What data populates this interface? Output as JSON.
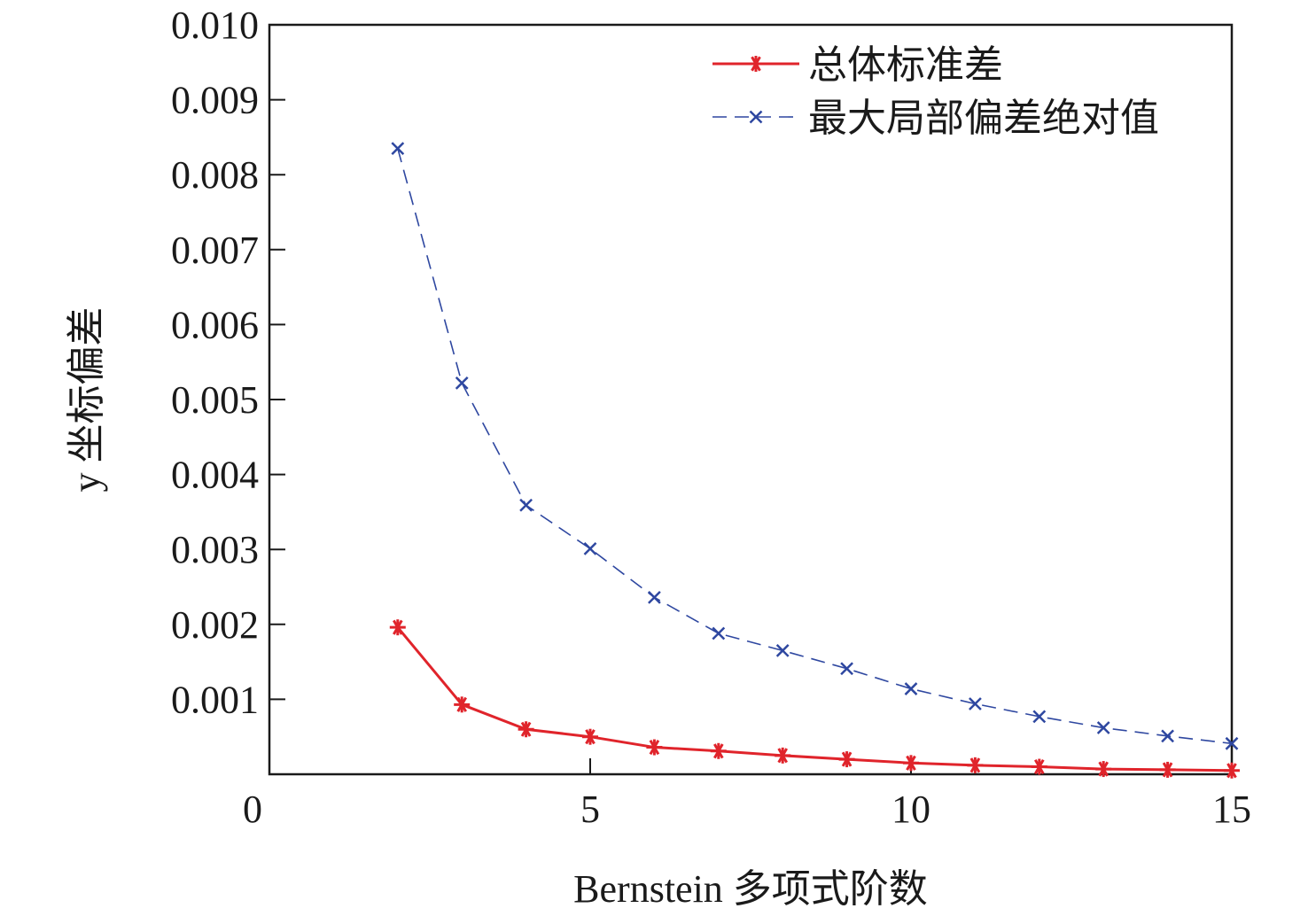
{
  "chart_data": {
    "type": "line",
    "xlabel": "Bernstein 多项式阶数",
    "ylabel": "y 坐标偏差",
    "xlim": [
      0,
      15
    ],
    "ylim": [
      0,
      0.01
    ],
    "x_ticks": [
      0,
      5,
      10,
      15
    ],
    "y_ticks": [
      0.001,
      0.002,
      0.003,
      0.004,
      0.005,
      0.006,
      0.007,
      0.008,
      0.009,
      0.01
    ],
    "y_tick_labels": [
      "0.001",
      "0.002",
      "0.003",
      "0.004",
      "0.005",
      "0.006",
      "0.007",
      "0.008",
      "0.009",
      "0.010"
    ],
    "x_tick_labels": [
      "0",
      "5",
      "10",
      "15"
    ],
    "grid": false,
    "legend_position": "top-right",
    "x": [
      2,
      3,
      4,
      5,
      6,
      7,
      8,
      9,
      10,
      11,
      12,
      13,
      14,
      15
    ],
    "series": [
      {
        "name": "总体标准差",
        "color": "#e0242b",
        "line_style": "solid",
        "marker": "asterisk",
        "values": [
          0.00196,
          0.00093,
          0.0006,
          0.0005,
          0.00036,
          0.00031,
          0.00025,
          0.0002,
          0.00015,
          0.00012,
          0.0001,
          7e-05,
          6e-05,
          5e-05
        ]
      },
      {
        "name": "最大局部偏差绝对值",
        "color": "#2e47a0",
        "line_style": "dashed",
        "marker": "x",
        "values": [
          0.00835,
          0.00522,
          0.00359,
          0.00301,
          0.00236,
          0.00188,
          0.00165,
          0.00141,
          0.00114,
          0.00094,
          0.00077,
          0.00062,
          0.00051,
          0.00041
        ]
      }
    ]
  }
}
